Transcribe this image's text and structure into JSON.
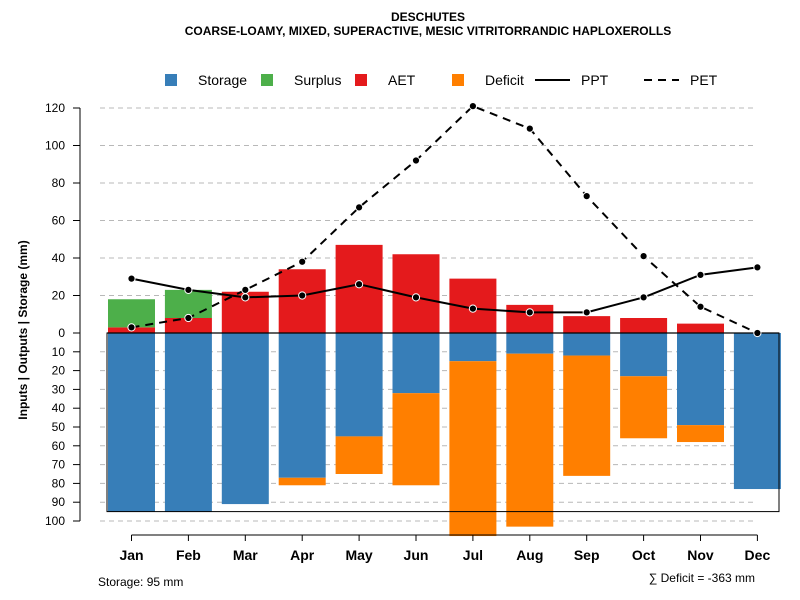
{
  "chart_data": {
    "type": "bar",
    "title": "DESCHUTES",
    "subtitle": "COARSE-LOAMY, MIXED, SUPERACTIVE, MESIC VITRITORRANDIC HAPLOXEROLLS",
    "ylabel": "Inputs | Outputs | Storage    (mm)",
    "categories": [
      "Jan",
      "Feb",
      "Mar",
      "Apr",
      "May",
      "Jun",
      "Jul",
      "Aug",
      "Sep",
      "Oct",
      "Nov",
      "Dec"
    ],
    "legend": [
      {
        "key": "storage",
        "label": "Storage",
        "color": "#377EB8",
        "kind": "box"
      },
      {
        "key": "surplus",
        "label": "Surplus",
        "color": "#4DAF4A",
        "kind": "box"
      },
      {
        "key": "aet",
        "label": "AET",
        "color": "#E41A1C",
        "kind": "box"
      },
      {
        "key": "deficit",
        "label": "Deficit",
        "color": "#FF7F00",
        "kind": "box"
      },
      {
        "key": "ppt",
        "label": "PPT",
        "color": "#000000",
        "kind": "solid"
      },
      {
        "key": "pet",
        "label": "PET",
        "color": "#000000",
        "kind": "dashed"
      }
    ],
    "upper_axis": {
      "ylim": [
        0,
        130
      ],
      "ticks": [
        0,
        20,
        40,
        60,
        80,
        100,
        120
      ]
    },
    "lower_axis": {
      "ylim": [
        0,
        100
      ],
      "ticks": [
        10,
        20,
        30,
        40,
        50,
        60,
        70,
        80,
        90,
        100
      ]
    },
    "series": {
      "aet": [
        3,
        8,
        22,
        34,
        47,
        42,
        29,
        15,
        9,
        8,
        5,
        0
      ],
      "surplus": [
        15,
        15,
        0,
        0,
        0,
        0,
        0,
        0,
        0,
        0,
        0,
        0
      ],
      "storage": [
        95,
        95,
        91,
        77,
        55,
        32,
        15,
        11,
        12,
        23,
        49,
        83
      ],
      "deficit": [
        0,
        0,
        0,
        4,
        20,
        49,
        93,
        92,
        64,
        33,
        9,
        0
      ],
      "ppt": [
        29,
        23,
        19,
        20,
        26,
        19,
        13,
        11,
        11,
        19,
        31,
        35
      ],
      "pet": [
        3,
        8,
        23,
        38,
        67,
        92,
        121,
        109,
        73,
        41,
        14,
        0
      ]
    },
    "storage_capacity": 95,
    "footer_left": "Storage: 95 mm",
    "footer_right": "∑ Deficit = -363 mm"
  },
  "colors": {
    "grid": "#b8b8b8",
    "axis": "#000000"
  }
}
